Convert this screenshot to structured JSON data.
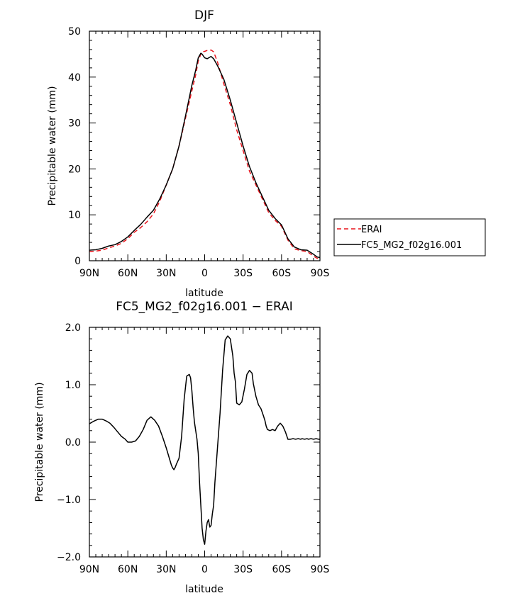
{
  "chart_data": [
    {
      "type": "line",
      "title": "DJF",
      "xlabel": "latitude",
      "ylabel": "Precipitable water (mm)",
      "xlim": [
        90,
        -90
      ],
      "ylim": [
        0,
        50
      ],
      "x_ticks": [
        90,
        60,
        30,
        0,
        -30,
        -60,
        -90
      ],
      "x_tick_labels": [
        "90N",
        "60N",
        "30N",
        "0",
        "30S",
        "60S",
        "90S"
      ],
      "y_ticks": [
        0,
        10,
        20,
        30,
        40,
        50
      ],
      "y_tick_labels": [
        "0",
        "10",
        "20",
        "30",
        "40",
        "50"
      ],
      "legend_position": "right",
      "series": [
        {
          "name": "ERAI",
          "color": "#e8141c",
          "dash": "dashed",
          "x": [
            90,
            85,
            80,
            75,
            70,
            65,
            60,
            55,
            50,
            45,
            40,
            35,
            30,
            25,
            20,
            15,
            10,
            7,
            5,
            3,
            2,
            0,
            -2,
            -5,
            -7,
            -10,
            -15,
            -20,
            -25,
            -30,
            -35,
            -40,
            -45,
            -50,
            -55,
            -60,
            -65,
            -70,
            -75,
            -80,
            -85,
            -88,
            -90
          ],
          "y": [
            2.0,
            2.1,
            2.3,
            2.8,
            3.2,
            3.8,
            4.8,
            6.2,
            7.2,
            8.5,
            10.2,
            13.0,
            16.5,
            20.0,
            25.0,
            31.0,
            37.0,
            40.5,
            43.5,
            45.0,
            45.5,
            45.6,
            45.8,
            45.9,
            45.5,
            43.3,
            38.5,
            34.0,
            28.5,
            24.0,
            19.5,
            16.5,
            13.5,
            10.5,
            8.8,
            7.5,
            4.5,
            2.6,
            2.2,
            2.0,
            1.0,
            0.5,
            0.4
          ]
        },
        {
          "name": "FC5_MG2_f02g16.001",
          "color": "#000000",
          "dash": "solid",
          "x": [
            90,
            85,
            80,
            75,
            70,
            65,
            60,
            55,
            50,
            45,
            40,
            35,
            30,
            25,
            20,
            15,
            10,
            7,
            5,
            3,
            2,
            0,
            -2,
            -5,
            -7,
            -10,
            -15,
            -20,
            -25,
            -30,
            -35,
            -40,
            -45,
            -50,
            -55,
            -60,
            -65,
            -70,
            -75,
            -80,
            -85,
            -88,
            -90
          ],
          "y": [
            2.3,
            2.4,
            2.7,
            3.2,
            3.5,
            4.2,
            5.2,
            6.6,
            7.9,
            9.5,
            11.0,
            13.5,
            16.5,
            20.0,
            25.0,
            31.5,
            38.2,
            41.5,
            44.2,
            45.2,
            45.0,
            44.2,
            44.0,
            44.5,
            44.0,
            42.5,
            39.5,
            35.0,
            30.0,
            25.0,
            20.5,
            17.0,
            14.0,
            11.0,
            9.2,
            7.8,
            4.8,
            3.0,
            2.4,
            2.3,
            1.4,
            0.8,
            0.7
          ]
        }
      ]
    },
    {
      "type": "line",
      "title": "FC5_MG2_f02g16.001 − ERAI",
      "xlabel": "latitude",
      "ylabel": "Precipitable water (mm)",
      "xlim": [
        90,
        -90
      ],
      "ylim": [
        -2.0,
        2.0
      ],
      "x_ticks": [
        90,
        60,
        30,
        0,
        -30,
        -60,
        -90
      ],
      "x_tick_labels": [
        "90N",
        "60N",
        "30N",
        "0",
        "30S",
        "60S",
        "90S"
      ],
      "y_ticks": [
        -2.0,
        -1.0,
        0.0,
        1.0,
        2.0
      ],
      "y_tick_labels": [
        "−2.0",
        "−1.0",
        "0.0",
        "1.0",
        "2.0"
      ],
      "series": [
        {
          "color": "#000000",
          "dash": "solid",
          "x": [
            90,
            87,
            83,
            80,
            77,
            74,
            71,
            68,
            65,
            62,
            60,
            57,
            54,
            51,
            48,
            45,
            42,
            39,
            36,
            33,
            30,
            28,
            26,
            25,
            24,
            23,
            22,
            20,
            18,
            16,
            14,
            12,
            11,
            10,
            9,
            8,
            7,
            6,
            5,
            4,
            3,
            2,
            1,
            0,
            -1,
            -2,
            -3,
            -4,
            -5,
            -6,
            -7,
            -8,
            -9,
            -10,
            -12,
            -14,
            -16,
            -18,
            -20,
            -21,
            -22,
            -23,
            -24,
            -25,
            -27,
            -29,
            -31,
            -33,
            -35,
            -37,
            -38,
            -40,
            -42,
            -44,
            -46,
            -47,
            -48,
            -49,
            -51,
            -53,
            -55,
            -57,
            -59,
            -61,
            -63,
            -65,
            -67,
            -69,
            -71,
            -73,
            -75,
            -76,
            -78,
            -80,
            -81,
            -83,
            -85,
            -87,
            -89,
            -90
          ],
          "y": [
            0.32,
            0.36,
            0.4,
            0.4,
            0.37,
            0.33,
            0.26,
            0.18,
            0.1,
            0.05,
            0.0,
            0.0,
            0.02,
            0.1,
            0.22,
            0.38,
            0.44,
            0.38,
            0.28,
            0.1,
            -0.1,
            -0.25,
            -0.4,
            -0.45,
            -0.48,
            -0.44,
            -0.38,
            -0.28,
            0.1,
            0.75,
            1.15,
            1.18,
            1.12,
            0.9,
            0.6,
            0.35,
            0.2,
            0.05,
            -0.2,
            -0.7,
            -1.1,
            -1.5,
            -1.7,
            -1.78,
            -1.55,
            -1.4,
            -1.35,
            -1.48,
            -1.45,
            -1.25,
            -1.1,
            -0.7,
            -0.4,
            -0.1,
            0.5,
            1.25,
            1.78,
            1.85,
            1.8,
            1.65,
            1.5,
            1.2,
            1.05,
            0.68,
            0.65,
            0.7,
            0.92,
            1.18,
            1.25,
            1.2,
            1.02,
            0.8,
            0.65,
            0.58,
            0.45,
            0.38,
            0.28,
            0.22,
            0.2,
            0.22,
            0.2,
            0.28,
            0.33,
            0.28,
            0.18,
            0.05,
            0.05,
            0.06,
            0.05,
            0.06,
            0.05,
            0.06,
            0.05,
            0.06,
            0.05,
            0.06,
            0.05,
            0.06,
            0.05,
            0.05
          ]
        }
      ]
    }
  ]
}
